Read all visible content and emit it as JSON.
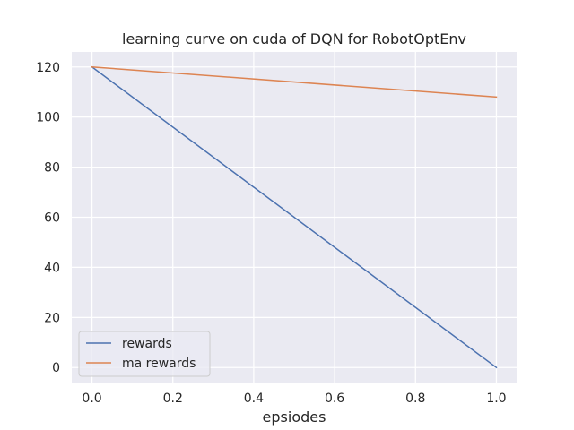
{
  "chart_data": {
    "type": "line",
    "title": "learning curve on cuda of DQN for RobotOptEnv",
    "xlabel": "epsiodes",
    "ylabel": "",
    "xlim": [
      -0.05,
      1.05
    ],
    "ylim": [
      -6,
      126
    ],
    "xticks": [
      0.0,
      0.2,
      0.4,
      0.6,
      0.8,
      1.0
    ],
    "xtick_labels": [
      "0.0",
      "0.2",
      "0.4",
      "0.6",
      "0.8",
      "1.0"
    ],
    "yticks": [
      0,
      20,
      40,
      60,
      80,
      100,
      120
    ],
    "ytick_labels": [
      "0",
      "20",
      "40",
      "60",
      "80",
      "100",
      "120"
    ],
    "grid": true,
    "legend_position": "lower-left",
    "series": [
      {
        "name": "rewards",
        "color": "#4c72b0",
        "x": [
          0.0,
          1.0
        ],
        "y": [
          120,
          0
        ]
      },
      {
        "name": "ma rewards",
        "color": "#dd8452",
        "x": [
          0.0,
          1.0
        ],
        "y": [
          120,
          108
        ]
      }
    ],
    "colors": {
      "plot_background": "#eaeaf2",
      "grid": "#ffffff",
      "text": "#262626"
    }
  }
}
